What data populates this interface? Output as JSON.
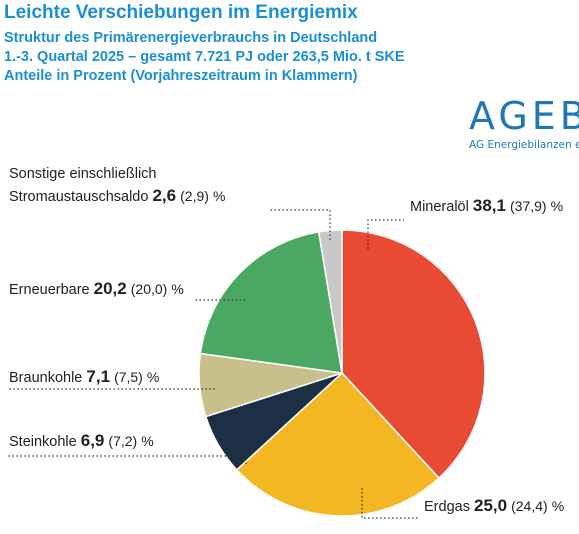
{
  "header": {
    "title": "Leichte Verschiebungen im Energiemix",
    "subtitle_1": "Struktur des Primärenergieverbrauchs in Deutschland",
    "subtitle_2": "1.-3. Quartal 2025 – gesamt 7.721 PJ oder 263,5 Mio. t SKE",
    "subtitle_3": "Anteile in Prozent (Vorjahreszeitraum in Klammern)"
  },
  "logo": {
    "word": "AGEB",
    "sub": "AG Energiebilanzen e.V."
  },
  "chart_data": {
    "type": "pie",
    "title": "Leichte Verschiebungen im Energiemix",
    "unit": "%",
    "slices": [
      {
        "name": "Mineralöl",
        "value": 38.1,
        "value_label": "38,1",
        "prev_label": "(37,9)",
        "color": "#e84a33"
      },
      {
        "name": "Erdgas",
        "value": 25.0,
        "value_label": "25,0",
        "prev_label": "(24,4)",
        "color": "#f2b722"
      },
      {
        "name": "Steinkohle",
        "value": 6.9,
        "value_label": "6,9",
        "prev_label": "(7,2)",
        "color": "#1c2f45"
      },
      {
        "name": "Braunkohle",
        "value": 7.1,
        "value_label": "7,1",
        "prev_label": "(7,5)",
        "color": "#c8c08a"
      },
      {
        "name": "Erneuerbare",
        "value": 20.2,
        "value_label": "20,2",
        "prev_label": "(20,0)",
        "color": "#4aa863"
      },
      {
        "name": "Sonstige einschließlich Stromaustauschsaldo",
        "name_line1": "Sonstige einschließlich",
        "name_line2": "Stromaustauschsaldo",
        "value": 2.6,
        "value_label": "2,6",
        "prev_label": "(2,9)",
        "color": "#c8c8c8"
      }
    ]
  }
}
